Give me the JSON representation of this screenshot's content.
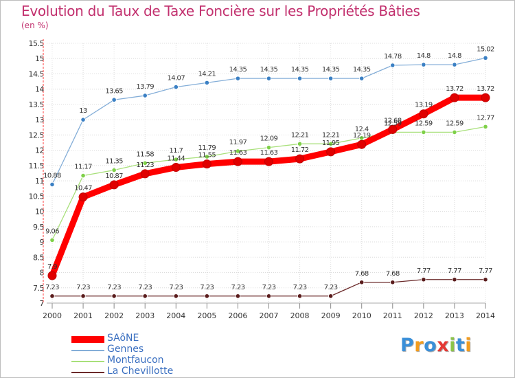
{
  "chart_data": {
    "type": "line",
    "title": "Evolution du Taux de Taxe Foncière sur les Propriétés Bâties",
    "ylabel": "(en %)",
    "xlabel": "",
    "ylim": [
      7,
      15.5
    ],
    "yticks": [
      "7",
      "7.5",
      "8",
      "8.5",
      "9",
      "9.5",
      "10",
      "10.5",
      "11",
      "11.5",
      "12",
      "12.5",
      "13",
      "13.5",
      "14",
      "14.5",
      "15",
      "15.5"
    ],
    "categories": [
      "2000",
      "2001",
      "2002",
      "2003",
      "2004",
      "2005",
      "2006",
      "2007",
      "2008",
      "2009",
      "2010",
      "2011",
      "2012",
      "2013",
      "2014"
    ],
    "grid": true,
    "legend_position": "bottom-left",
    "series": [
      {
        "name": "SAôNE",
        "color": "#ff0000",
        "marker_color": "#e00000",
        "width": "thick",
        "values": [
          7.9,
          10.47,
          10.87,
          11.23,
          11.44,
          11.55,
          11.63,
          11.63,
          11.72,
          11.95,
          12.19,
          12.68,
          13.19,
          13.72,
          13.72
        ],
        "labels": [
          "7.9",
          "10.47",
          "10.87",
          "11.23",
          "11.44",
          "11.55",
          "11.63",
          "11.63",
          "11.72",
          "11.95",
          "12.19",
          "12.68",
          "13.19",
          "13.72",
          "13.72"
        ]
      },
      {
        "name": "Gennes",
        "color": "#84aed8",
        "marker_color": "#3b80c4",
        "width": "thin",
        "values": [
          10.88,
          13.0,
          13.65,
          13.79,
          14.07,
          14.21,
          14.35,
          14.35,
          14.35,
          14.35,
          14.35,
          14.78,
          14.8,
          14.8,
          15.02
        ],
        "labels": [
          "10.88",
          "13",
          "13.65",
          "13.79",
          "14.07",
          "14.21",
          "14.35",
          "14.35",
          "14.35",
          "14.35",
          "14.35",
          "14.78",
          "14.8",
          "14.8",
          "15.02"
        ]
      },
      {
        "name": "Montfaucon",
        "color": "#a8e07a",
        "marker_color": "#7ed048",
        "width": "thin",
        "values": [
          9.06,
          11.17,
          11.35,
          11.58,
          11.7,
          11.79,
          11.97,
          12.09,
          12.21,
          12.21,
          12.4,
          12.59,
          12.59,
          12.59,
          12.77
        ],
        "labels": [
          "9.06",
          "11.17",
          "11.35",
          "11.58",
          "11.7",
          "11.79",
          "11.97",
          "12.09",
          "12.21",
          "12.21",
          "12.4",
          "12.59",
          "12.59",
          "12.59",
          "12.77"
        ]
      },
      {
        "name": "La Chevillotte",
        "color": "#6b2a2a",
        "marker_color": "#5a1c1c",
        "width": "thin",
        "values": [
          7.23,
          7.23,
          7.23,
          7.23,
          7.23,
          7.23,
          7.23,
          7.23,
          7.23,
          7.23,
          7.68,
          7.68,
          7.77,
          7.77,
          7.77
        ],
        "labels": [
          "7.23",
          "7.23",
          "7.23",
          "7.23",
          "7.23",
          "7.23",
          "7.23",
          "7.23",
          "7.23",
          "7.23",
          "7.68",
          "7.68",
          "7.77",
          "7.77",
          "7.77"
        ]
      }
    ]
  },
  "logo": {
    "letters": [
      "P",
      "r",
      "o",
      "x",
      "i",
      "t",
      "i"
    ],
    "colors": [
      "#3a8fd8",
      "#f39c1d",
      "#3a8fd8",
      "#e53935",
      "#8bc34a",
      "#3a8fd8",
      "#f39c1d"
    ]
  }
}
